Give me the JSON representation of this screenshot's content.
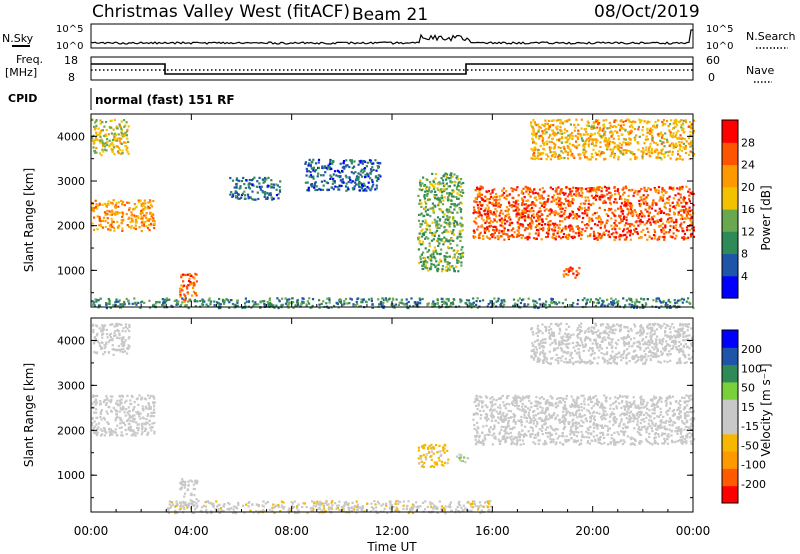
{
  "header": {
    "site": "Christmas Valley West (fitACF)",
    "beam": "Beam 21",
    "date": "08/Oct/2019"
  },
  "strip_labels": {
    "nsky": "N.Sky",
    "nsearch": "N.Search",
    "nsky_ticks": [
      "10^5",
      "10^0"
    ],
    "nsearch_ticks": [
      "10^5",
      "10^0"
    ],
    "freq": "Freq.",
    "freq_unit": "[MHz]",
    "freq_ticks": [
      "18",
      "8"
    ],
    "nave": "Nave",
    "nave_ticks": [
      "60",
      "0"
    ],
    "cpid": "CPID",
    "cpid_value": "normal (fast) 151 RF"
  },
  "colors": {
    "power_scale": [
      "#0000ff",
      "#1f55a8",
      "#2e8b57",
      "#6aa84f",
      "#f2c200",
      "#ff9900",
      "#ff5500",
      "#ff0000"
    ],
    "velocity_scale": [
      "#ff0000",
      "#ff5a00",
      "#ff9900",
      "#f5b700",
      "#c8c8c8",
      "#c8c8c8",
      "#7ad03a",
      "#2e8b57",
      "#1f55a8",
      "#0000ff"
    ],
    "ground_scatter": "#c8c8c8"
  },
  "chart_data": [
    {
      "type": "heatmap",
      "panel": "power",
      "ylabel": "Slant Range [km]",
      "ylim": [
        180,
        4500
      ],
      "yticks": [
        "1000",
        "2000",
        "3000",
        "4000"
      ],
      "xlim": [
        0,
        24
      ],
      "colorbar": {
        "label": "Power [dB]",
        "range": [
          0,
          32
        ],
        "ticks": [
          "4",
          "8",
          "12",
          "16",
          "20",
          "24",
          "28"
        ]
      },
      "regions": [
        {
          "t": [
            0.0,
            2.5
          ],
          "r": [
            1900,
            2600
          ],
          "value": 22
        },
        {
          "t": [
            0.0,
            1.5
          ],
          "r": [
            3600,
            4400
          ],
          "value": 17
        },
        {
          "t": [
            3.5,
            4.2
          ],
          "r": [
            300,
            950
          ],
          "value": 25
        },
        {
          "t": [
            5.5,
            7.5
          ],
          "r": [
            2600,
            3100
          ],
          "value": 8
        },
        {
          "t": [
            8.5,
            11.5
          ],
          "r": [
            2800,
            3500
          ],
          "value": 7
        },
        {
          "t": [
            13.0,
            14.8
          ],
          "r": [
            1000,
            3200
          ],
          "value": 13
        },
        {
          "t": [
            15.2,
            24.0
          ],
          "r": [
            1700,
            2900
          ],
          "value": 26
        },
        {
          "t": [
            17.5,
            24.0
          ],
          "r": [
            3500,
            4400
          ],
          "value": 20
        },
        {
          "t": [
            18.8,
            19.5
          ],
          "r": [
            850,
            1100
          ],
          "value": 26
        },
        {
          "t": [
            0.0,
            24.0
          ],
          "r": [
            180,
            400
          ],
          "value": 10
        }
      ]
    },
    {
      "type": "heatmap",
      "panel": "velocity",
      "ylabel": "Slant Range [km]",
      "xlabel": "Time UT",
      "xticks": [
        "00:00",
        "04:00",
        "08:00",
        "12:00",
        "16:00",
        "20:00",
        "00:00"
      ],
      "ylim": [
        180,
        4500
      ],
      "yticks": [
        "1000",
        "2000",
        "3000",
        "4000"
      ],
      "xlim": [
        0,
        24
      ],
      "colorbar": {
        "label": "Velocity [m s⁻¹]",
        "range": [
          -250,
          250
        ],
        "ticks": [
          "200",
          "100",
          "50",
          "15",
          "-15",
          "-50",
          "-100",
          "-200"
        ]
      },
      "regions": [
        {
          "t": [
            0.0,
            2.5
          ],
          "r": [
            1900,
            2800
          ],
          "value": 0
        },
        {
          "t": [
            0.0,
            1.5
          ],
          "r": [
            3700,
            4400
          ],
          "value": 0
        },
        {
          "t": [
            3.5,
            4.2
          ],
          "r": [
            300,
            950
          ],
          "value": 0
        },
        {
          "t": [
            13.0,
            14.2
          ],
          "r": [
            1200,
            1700
          ],
          "value": -60
        },
        {
          "t": [
            14.5,
            15.0
          ],
          "r": [
            1300,
            1500
          ],
          "value": 40
        },
        {
          "t": [
            15.2,
            24.0
          ],
          "r": [
            1700,
            2800
          ],
          "value": 0
        },
        {
          "t": [
            17.5,
            24.0
          ],
          "r": [
            3500,
            4400
          ],
          "value": 0
        },
        {
          "t": [
            3.0,
            16.0
          ],
          "r": [
            180,
            450
          ],
          "value": -40
        }
      ]
    }
  ]
}
